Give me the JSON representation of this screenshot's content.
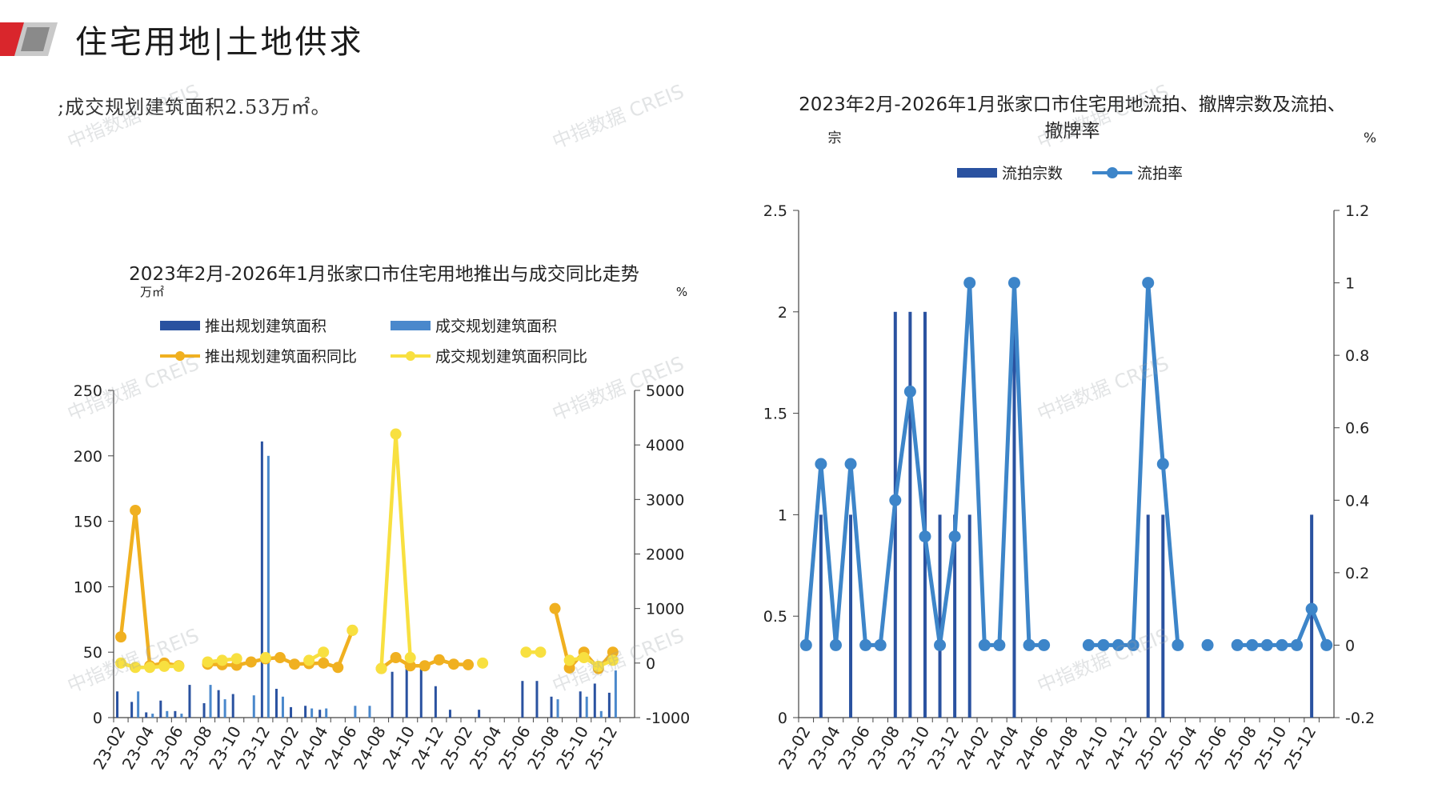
{
  "header": {
    "title": "住宅用地|土地供求",
    "intro_text": ";成交规划建筑面积2.53万㎡。",
    "watermark": "中指数据 CREIS"
  },
  "colors": {
    "supply_bar": "#2a52a0",
    "deal_bar": "#4a88cc",
    "supply_yoy": "#f0b020",
    "deal_yoy": "#f8e040",
    "right_bar": "#2a52a0",
    "right_line": "#3d85c9",
    "brand_red": "#d9262c"
  },
  "chart_data": [
    {
      "type": "bar",
      "title": "2023年2月-2026年1月张家口市住宅用地推出与成交同比走势",
      "left_unit": "万㎡",
      "right_unit": "%",
      "ylim_left": [
        0,
        250
      ],
      "ylim_right": [
        -1000,
        5000
      ],
      "left_ticks": [
        "0",
        "50",
        "100",
        "150",
        "200",
        "250"
      ],
      "right_ticks": [
        "-1000",
        "0",
        "1000",
        "2000",
        "3000",
        "4000",
        "5000"
      ],
      "x": [
        "23-02",
        "23-03",
        "23-04",
        "23-05",
        "23-06",
        "23-07",
        "23-08",
        "23-09",
        "23-10",
        "23-11",
        "23-12",
        "24-01",
        "24-02",
        "24-03",
        "24-04",
        "24-05",
        "24-06",
        "24-07",
        "24-08",
        "24-09",
        "24-10",
        "24-11",
        "24-12",
        "25-01",
        "25-02",
        "25-03",
        "25-04",
        "25-05",
        "25-06",
        "25-07",
        "25-08",
        "25-09",
        "25-10",
        "25-11",
        "25-12",
        "26-01"
      ],
      "tick_labels": [
        "23-02",
        "23-04",
        "23-06",
        "23-08",
        "23-10",
        "23-12",
        "24-02",
        "24-04",
        "24-06",
        "24-08",
        "24-10",
        "24-12",
        "25-02",
        "25-04",
        "25-06",
        "25-08",
        "25-10",
        "25-12"
      ],
      "legend": [
        "推出规划建筑面积",
        "成交规划建筑面积",
        "推出规划建筑面积同比",
        "成交规划建筑面积同比"
      ],
      "series": [
        {
          "name": "推出规划建筑面积",
          "values": [
            20,
            12,
            4,
            13,
            5,
            25,
            11,
            21,
            18,
            0,
            211,
            22,
            8,
            9,
            6,
            0,
            0,
            0,
            0,
            35,
            38,
            37,
            24,
            6,
            0,
            6,
            0,
            0,
            28,
            28,
            16,
            0,
            20,
            26,
            19,
            0
          ]
        },
        {
          "name": "成交规划建筑面积",
          "values": [
            0,
            20,
            3,
            5,
            3,
            0,
            25,
            14,
            0,
            17,
            200,
            16,
            0,
            7,
            7,
            0,
            9,
            9,
            0,
            0,
            0,
            0,
            0,
            0,
            0,
            0,
            0,
            0,
            0,
            0,
            14,
            0,
            16,
            5,
            36,
            0
          ]
        },
        {
          "name": "推出规划建筑面积同比",
          "values": [
            480,
            2800,
            -50,
            0,
            -50,
            null,
            -20,
            -30,
            -40,
            20,
            80,
            100,
            -20,
            -10,
            0,
            -80,
            600,
            null,
            -100,
            100,
            -50,
            -50,
            60,
            -20,
            -30,
            null,
            null,
            null,
            null,
            null,
            1000,
            -90,
            200,
            -100,
            200,
            null
          ]
        },
        {
          "name": "成交规划建筑面积同比",
          "values": [
            0,
            -80,
            -80,
            -60,
            -60,
            null,
            20,
            50,
            80,
            null,
            100,
            null,
            null,
            50,
            200,
            null,
            600,
            null,
            -100,
            4200,
            100,
            null,
            null,
            null,
            null,
            0,
            null,
            null,
            200,
            200,
            null,
            50,
            100,
            -60,
            50,
            null
          ]
        }
      ]
    },
    {
      "type": "bar",
      "title": "2023年2月-2026年1月张家口市住宅用地流拍、撤牌宗数及流拍、撤牌率",
      "left_unit": "宗",
      "right_unit": "%",
      "ylim_left": [
        0,
        2.5
      ],
      "ylim_right": [
        -0.2,
        1.2
      ],
      "left_ticks": [
        "0",
        "0.5",
        "1",
        "1.5",
        "2",
        "2.5"
      ],
      "right_ticks": [
        "-0.2",
        "0",
        "0.2",
        "0.4",
        "0.6",
        "0.8",
        "1",
        "1.2"
      ],
      "x": [
        "23-02",
        "23-03",
        "23-04",
        "23-05",
        "23-06",
        "23-07",
        "23-08",
        "23-09",
        "23-10",
        "23-11",
        "23-12",
        "24-01",
        "24-02",
        "24-03",
        "24-04",
        "24-05",
        "24-06",
        "24-07",
        "24-08",
        "24-09",
        "24-10",
        "24-11",
        "24-12",
        "25-01",
        "25-02",
        "25-03",
        "25-04",
        "25-05",
        "25-06",
        "25-07",
        "25-08",
        "25-09",
        "25-10",
        "25-11",
        "25-12",
        "26-01"
      ],
      "tick_labels": [
        "23-02",
        "23-04",
        "23-06",
        "23-08",
        "23-10",
        "23-12",
        "24-02",
        "24-04",
        "24-06",
        "24-08",
        "24-10",
        "24-12",
        "25-02",
        "25-04",
        "25-06",
        "25-08",
        "25-10",
        "25-12"
      ],
      "legend": [
        "流拍宗数",
        "流拍率"
      ],
      "series": [
        {
          "name": "流拍宗数",
          "values": [
            0,
            1,
            0,
            1,
            0,
            0,
            2,
            2,
            2,
            1,
            1,
            1,
            0,
            0,
            2,
            0,
            0,
            0,
            0,
            0,
            0,
            0,
            0,
            1,
            1,
            0,
            0,
            0,
            0,
            0,
            0,
            0,
            0,
            0,
            1,
            0
          ]
        },
        {
          "name": "流拍率",
          "values": [
            0,
            0.5,
            0,
            0.5,
            0,
            0,
            0.4,
            0.7,
            0.3,
            0,
            0.3,
            1,
            0,
            0,
            1,
            0,
            0,
            null,
            null,
            0,
            0,
            0,
            0,
            1,
            0.5,
            0,
            null,
            0,
            null,
            0,
            0,
            0,
            0,
            0,
            0.1,
            0
          ]
        }
      ]
    }
  ]
}
